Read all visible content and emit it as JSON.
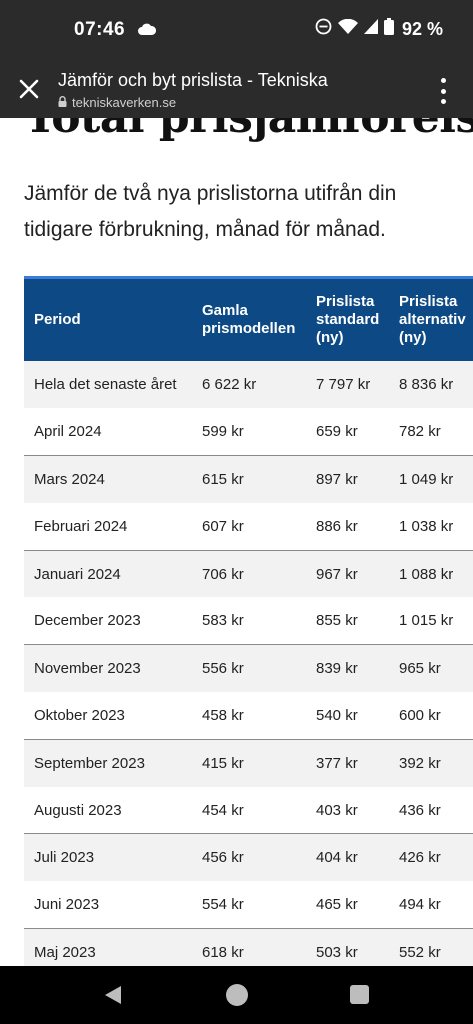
{
  "status_bar": {
    "time": "07:46",
    "battery_percent": "92 %",
    "icons": [
      "cloud-icon",
      "do-not-disturb-icon",
      "wifi-icon",
      "signal-icon",
      "battery-icon"
    ]
  },
  "browser": {
    "page_title": "Jämför och byt prislista - Tekniska",
    "url": "tekniskaverken.se"
  },
  "page": {
    "heading": "Total prisjämförelse",
    "intro": "Jämför de två nya prislistorna utifrån din tidigare förbrukning, månad för månad."
  },
  "table": {
    "headers": [
      "Period",
      "Gamla prismodellen",
      "Prislista standard (ny)",
      "Prislista alternativ (ny)"
    ],
    "rows": [
      [
        "Hela det senaste året",
        "6 622 kr",
        "7 797 kr",
        "8 836 kr"
      ],
      [
        "April 2024",
        "599 kr",
        "659 kr",
        "782 kr"
      ],
      [
        "Mars 2024",
        "615 kr",
        "897 kr",
        "1 049 kr"
      ],
      [
        "Februari 2024",
        "607 kr",
        "886 kr",
        "1 038 kr"
      ],
      [
        "Januari 2024",
        "706 kr",
        "967 kr",
        "1 088 kr"
      ],
      [
        "December 2023",
        "583 kr",
        "855 kr",
        "1 015 kr"
      ],
      [
        "November 2023",
        "556 kr",
        "839 kr",
        "965 kr"
      ],
      [
        "Oktober 2023",
        "458 kr",
        "540 kr",
        "600 kr"
      ],
      [
        "September 2023",
        "415 kr",
        "377 kr",
        "392 kr"
      ],
      [
        "Augusti 2023",
        "454 kr",
        "403 kr",
        "436 kr"
      ],
      [
        "Juli 2023",
        "456 kr",
        "404 kr",
        "426 kr"
      ],
      [
        "Juni 2023",
        "554 kr",
        "465 kr",
        "494 kr"
      ],
      [
        "Maj 2023",
        "618 kr",
        "503 kr",
        "552 kr"
      ]
    ]
  },
  "colors": {
    "header_bg": "#0d4a85",
    "accent_stripe": "#3b7dd8",
    "chrome_bg": "#2b2b2b"
  }
}
